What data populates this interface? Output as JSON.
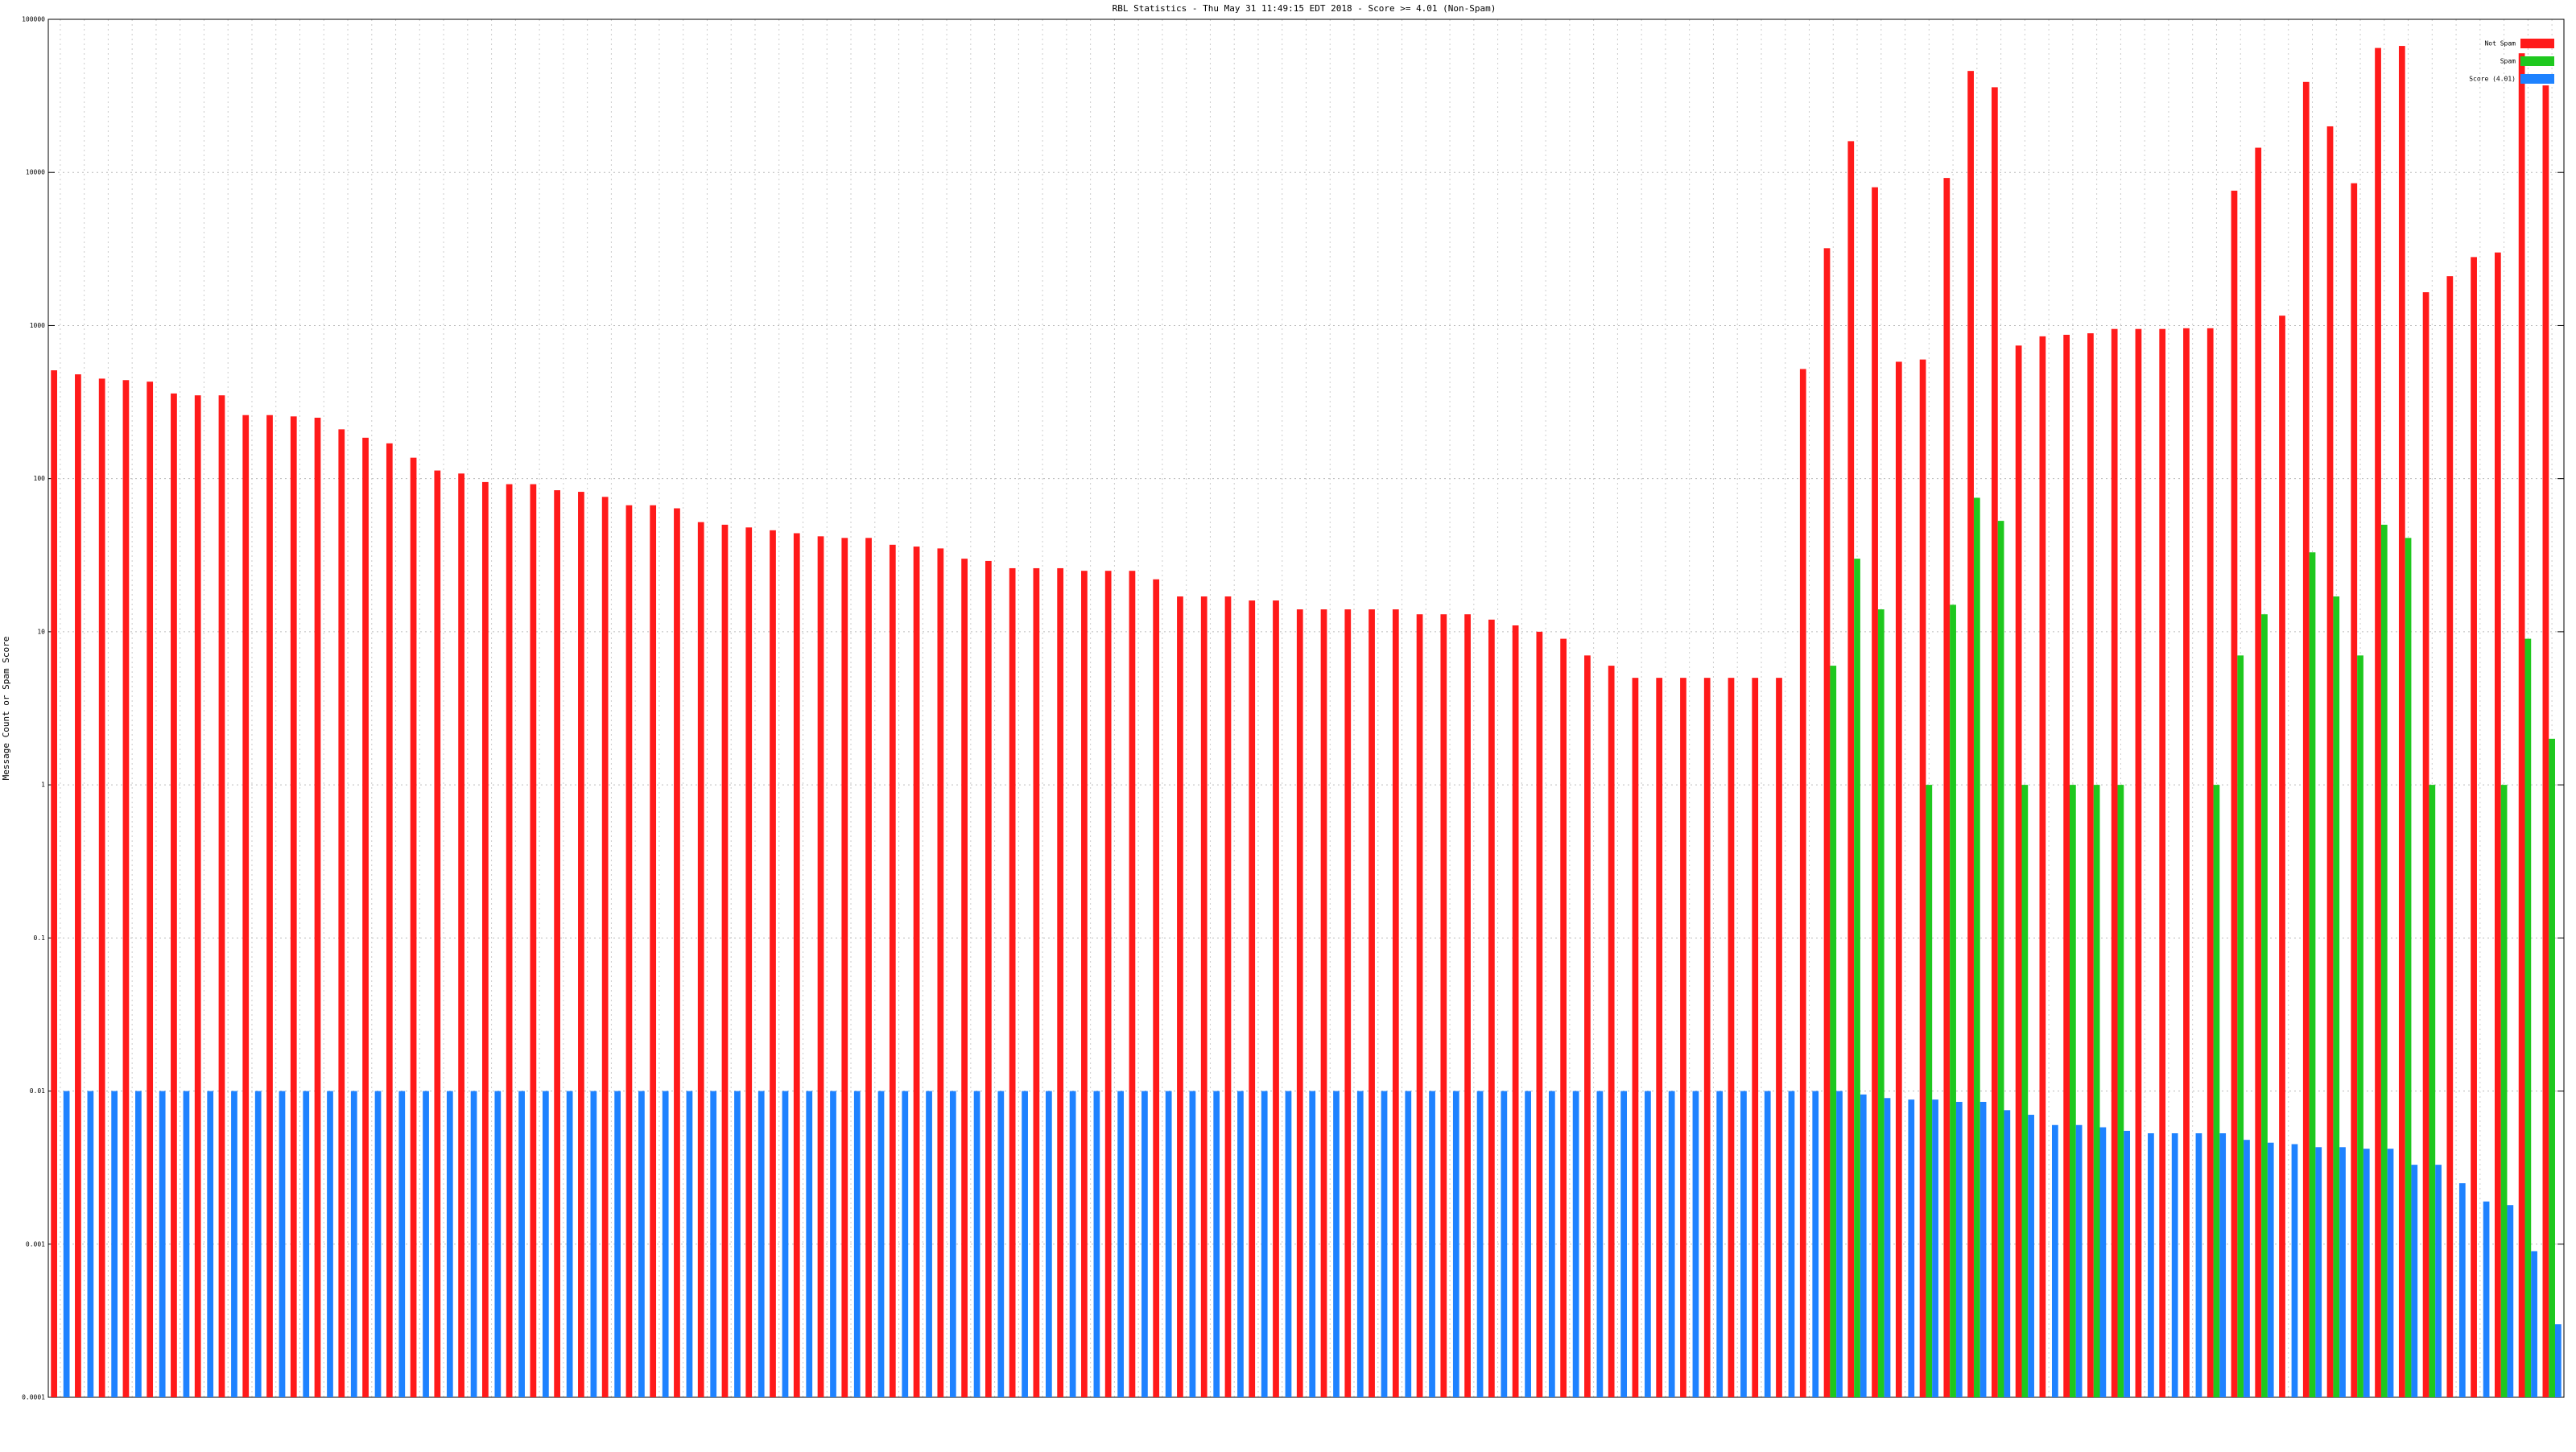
{
  "chart_data": {
    "type": "bar",
    "title": "RBL Statistics - Thu May 31 11:49:15 EDT 2018 - Score >= 4.01 (Non-Spam)",
    "y_label": "Message Count or Spam Score",
    "log_scale": true,
    "grid": true,
    "legend": "top-right",
    "categories": [
      null,
      null,
      null,
      null,
      null,
      null,
      null,
      null,
      null,
      null,
      null,
      null,
      null,
      null,
      null,
      null,
      null,
      null,
      null,
      null,
      null,
      null,
      null,
      null,
      null,
      null,
      null,
      null,
      null,
      null,
      null,
      null,
      null,
      null,
      null,
      null,
      null,
      null,
      null,
      null,
      null,
      null,
      null,
      null,
      null,
      null,
      null,
      null,
      null,
      null,
      null,
      null,
      null,
      null,
      null,
      null,
      null,
      null,
      null,
      null,
      null,
      null,
      null,
      null,
      null,
      null,
      null,
      null,
      null,
      null,
      null,
      null,
      null,
      null,
      null,
      null,
      null,
      null,
      null,
      null,
      null,
      null,
      null,
      null,
      null,
      null,
      null,
      null,
      null,
      null,
      null,
      null,
      null,
      null,
      null,
      null,
      null,
      null,
      null,
      null,
      null,
      null,
      null,
      null,
      null
    ],
    "ylim": [
      0.0001,
      100000
    ],
    "yticks": [
      0.0001,
      0.001,
      0.01,
      0.1,
      1,
      10,
      100,
      1000,
      10000,
      100000
    ],
    "series": [
      {
        "name": "Not Spam",
        "color": "#ff1a1a",
        "values": [
          510,
          480,
          450,
          440,
          430,
          360,
          350,
          350,
          260,
          260,
          255,
          250,
          210,
          185,
          170,
          137,
          113,
          108,
          95,
          92,
          92,
          84,
          82,
          76,
          67,
          67,
          64,
          52,
          50,
          48,
          46,
          44,
          42,
          41,
          41,
          37,
          36,
          35,
          30,
          29,
          26,
          26,
          26,
          25,
          25,
          25,
          22,
          17,
          17,
          17,
          16,
          16,
          14,
          14,
          14,
          14,
          14,
          13,
          13,
          13,
          12,
          11,
          10,
          9,
          7,
          6,
          5,
          5,
          5,
          5,
          5,
          5,
          5,
          520,
          3200,
          16000,
          8000,
          580,
          600,
          9200,
          46000,
          36000,
          740,
          850,
          870,
          890,
          950,
          950,
          950,
          960,
          960,
          7600,
          14500,
          1160,
          39000,
          20000,
          8500,
          65000,
          67000,
          1650,
          2100,
          2800,
          3000,
          60000,
          37000
        ]
      },
      {
        "name": "Spam",
        "color": "#1ec81e",
        "values": [
          null,
          null,
          null,
          null,
          null,
          null,
          null,
          null,
          null,
          null,
          null,
          null,
          null,
          null,
          null,
          null,
          null,
          null,
          null,
          null,
          null,
          null,
          null,
          null,
          null,
          null,
          null,
          null,
          null,
          null,
          null,
          null,
          null,
          null,
          null,
          null,
          null,
          null,
          null,
          null,
          null,
          null,
          null,
          null,
          null,
          null,
          null,
          null,
          null,
          null,
          null,
          null,
          null,
          null,
          null,
          null,
          null,
          null,
          null,
          null,
          null,
          null,
          null,
          null,
          null,
          null,
          null,
          null,
          null,
          null,
          null,
          null,
          null,
          null,
          6,
          30,
          14,
          null,
          1,
          15,
          75,
          53,
          1,
          null,
          1,
          1,
          1,
          null,
          null,
          null,
          1,
          7,
          13,
          null,
          33,
          17,
          7,
          50,
          41,
          1,
          null,
          null,
          1,
          9,
          2
        ]
      },
      {
        "name": "Score (4.01)",
        "color": "#1e82ff",
        "values": [
          0.01,
          0.01,
          0.01,
          0.01,
          0.01,
          0.01,
          0.01,
          0.01,
          0.01,
          0.01,
          0.01,
          0.01,
          0.01,
          0.01,
          0.01,
          0.01,
          0.01,
          0.01,
          0.01,
          0.01,
          0.01,
          0.01,
          0.01,
          0.01,
          0.01,
          0.01,
          0.01,
          0.01,
          0.01,
          0.01,
          0.01,
          0.01,
          0.01,
          0.01,
          0.01,
          0.01,
          0.01,
          0.01,
          0.01,
          0.01,
          0.01,
          0.01,
          0.01,
          0.01,
          0.01,
          0.01,
          0.01,
          0.01,
          0.01,
          0.01,
          0.01,
          0.01,
          0.01,
          0.01,
          0.01,
          0.01,
          0.01,
          0.01,
          0.01,
          0.01,
          0.01,
          0.01,
          0.01,
          0.01,
          0.01,
          0.01,
          0.01,
          0.01,
          0.01,
          0.01,
          0.01,
          0.01,
          0.01,
          0.01,
          0.01,
          0.0095,
          0.009,
          0.0088,
          0.0088,
          0.0085,
          0.0085,
          0.0075,
          0.007,
          0.006,
          0.006,
          0.0058,
          0.0055,
          0.0053,
          0.0053,
          0.0053,
          0.0053,
          0.0048,
          0.0046,
          0.0045,
          0.0043,
          0.0043,
          0.0042,
          0.0042,
          0.0033,
          0.0033,
          0.0025,
          0.0019,
          0.0018,
          0.0009,
          0.0003
        ]
      }
    ]
  }
}
